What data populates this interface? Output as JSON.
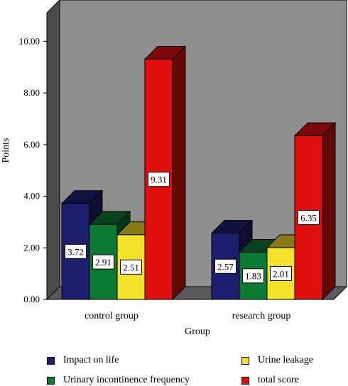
{
  "chart_data": {
    "type": "bar",
    "categories": [
      "control group",
      "research group"
    ],
    "series": [
      {
        "name": "Impact on life",
        "values": [
          3.72,
          2.57
        ],
        "color": "#1e1e6e"
      },
      {
        "name": "Urinary incontinence frequency",
        "values": [
          2.91,
          1.83
        ],
        "color": "#0c7a32"
      },
      {
        "name": "Urine leakage",
        "values": [
          2.51,
          2.01
        ],
        "color": "#f2e22a"
      },
      {
        "name": "total score",
        "values": [
          9.31,
          6.35
        ],
        "color": "#e01010"
      }
    ],
    "xlabel": "Group",
    "ylabel": "Points",
    "ylim": [
      0,
      11
    ],
    "yticks": [
      "0.00",
      "2.00",
      "4.00",
      "6.00",
      "8.00",
      "10.00"
    ],
    "data_labels": [
      "3.72",
      "2.91",
      "2.51",
      "9.31",
      "2.57",
      "1.83",
      "2.01",
      "6.35"
    ],
    "plot_background": "#8e8e8e",
    "style": "3d",
    "legend_position": "bottom"
  }
}
